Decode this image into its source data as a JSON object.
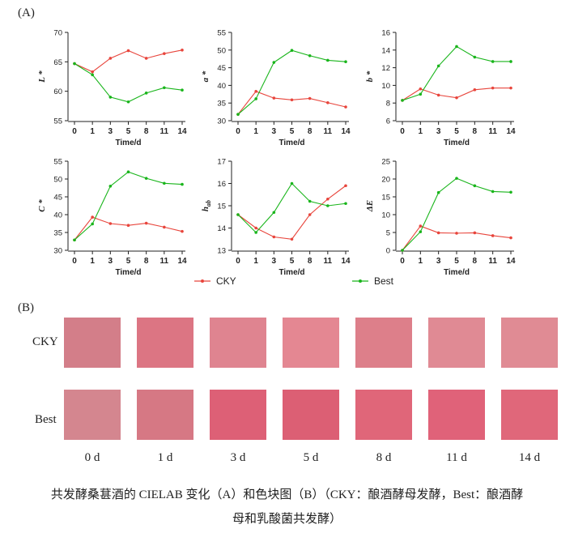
{
  "panel_a_label": "(A)",
  "panel_b_label": "(B)",
  "colors": {
    "CKY": "#e8453c",
    "Best": "#19b51b"
  },
  "chart_data": [
    {
      "type": "line",
      "ylabel": "L *",
      "ylabel_sub": "",
      "xlabel": "Time/d",
      "categories": [
        "0",
        "1",
        "3",
        "5",
        "8",
        "11",
        "14"
      ],
      "ylim": [
        55,
        70
      ],
      "yticks": [
        55,
        60,
        65,
        70
      ],
      "series": [
        {
          "name": "CKY",
          "values": [
            64.7,
            63.3,
            65.6,
            66.9,
            65.6,
            66.4,
            67.0
          ]
        },
        {
          "name": "Best",
          "values": [
            64.7,
            62.8,
            59.0,
            58.2,
            59.7,
            60.6,
            60.2
          ]
        }
      ]
    },
    {
      "type": "line",
      "ylabel": "a *",
      "ylabel_sub": "",
      "xlabel": "Time/d",
      "categories": [
        "0",
        "1",
        "3",
        "5",
        "8",
        "11",
        "14"
      ],
      "ylim": [
        30,
        55
      ],
      "yticks": [
        30,
        35,
        40,
        45,
        50,
        55
      ],
      "series": [
        {
          "name": "CKY",
          "values": [
            31.8,
            38.3,
            36.4,
            35.9,
            36.3,
            35.1,
            33.9
          ]
        },
        {
          "name": "Best",
          "values": [
            31.8,
            36.2,
            46.5,
            49.9,
            48.4,
            47.1,
            46.7
          ]
        }
      ]
    },
    {
      "type": "line",
      "ylabel": "b *",
      "ylabel_sub": "",
      "xlabel": "Time/d",
      "categories": [
        "0",
        "1",
        "3",
        "5",
        "8",
        "11",
        "14"
      ],
      "ylim": [
        6,
        16
      ],
      "yticks": [
        6,
        8,
        10,
        12,
        14,
        16
      ],
      "series": [
        {
          "name": "CKY",
          "values": [
            8.3,
            9.6,
            8.9,
            8.6,
            9.5,
            9.7,
            9.7
          ]
        },
        {
          "name": "Best",
          "values": [
            8.3,
            9.0,
            12.2,
            14.4,
            13.2,
            12.7,
            12.7
          ]
        }
      ]
    },
    {
      "type": "line",
      "ylabel": "C *",
      "ylabel_sub": "",
      "xlabel": "Time/d",
      "categories": [
        "0",
        "1",
        "3",
        "5",
        "8",
        "11",
        "14"
      ],
      "ylim": [
        30,
        55
      ],
      "yticks": [
        30,
        35,
        40,
        45,
        50,
        55
      ],
      "series": [
        {
          "name": "CKY",
          "values": [
            32.9,
            39.3,
            37.5,
            37.0,
            37.6,
            36.5,
            35.3
          ]
        },
        {
          "name": "Best",
          "values": [
            32.9,
            37.4,
            48.0,
            52.0,
            50.2,
            48.8,
            48.5
          ]
        }
      ]
    },
    {
      "type": "line",
      "ylabel": "h",
      "ylabel_sub": "ab",
      "xlabel": "Time/d",
      "categories": [
        "0",
        "1",
        "3",
        "5",
        "8",
        "11",
        "14"
      ],
      "ylim": [
        13,
        17
      ],
      "yticks": [
        13,
        14,
        15,
        16,
        17
      ],
      "series": [
        {
          "name": "CKY",
          "values": [
            14.6,
            14.0,
            13.6,
            13.5,
            14.6,
            15.3,
            15.9
          ]
        },
        {
          "name": "Best",
          "values": [
            14.6,
            13.8,
            14.7,
            16.0,
            15.2,
            15.0,
            15.1
          ]
        }
      ]
    },
    {
      "type": "line",
      "ylabel": "ΔE",
      "ylabel_sub": "",
      "xlabel": "Time/d",
      "categories": [
        "0",
        "1",
        "3",
        "5",
        "8",
        "11",
        "14"
      ],
      "ylim": [
        0,
        25
      ],
      "yticks": [
        0,
        5,
        10,
        15,
        20,
        25
      ],
      "series": [
        {
          "name": "CKY",
          "values": [
            0,
            6.8,
            4.9,
            4.8,
            4.9,
            4.1,
            3.5
          ]
        },
        {
          "name": "Best",
          "values": [
            0,
            5.2,
            16.2,
            20.2,
            18.1,
            16.5,
            16.3
          ]
        }
      ]
    }
  ],
  "legend": [
    "CKY",
    "Best"
  ],
  "swatches": {
    "rows": [
      {
        "label": "CKY",
        "colors": [
          "#d37e89",
          "#dc7583",
          "#df8490",
          "#e48792",
          "#dd7f8a",
          "#e08a94",
          "#e08b94"
        ]
      },
      {
        "label": "Best",
        "colors": [
          "#d4868f",
          "#d67884",
          "#dd6076",
          "#dc5f74",
          "#e06679",
          "#e06279",
          "#e0677a"
        ]
      }
    ],
    "days": [
      "0 d",
      "1 d",
      "3 d",
      "5 d",
      "8 d",
      "11 d",
      "14 d"
    ]
  },
  "caption": {
    "line1": "共发酵桑葚酒的 CIELAB 变化（A）和色块图（B）（CKY：酿酒酵母发酵，Best：酿酒酵",
    "line2": "母和乳酸菌共发酵）"
  }
}
